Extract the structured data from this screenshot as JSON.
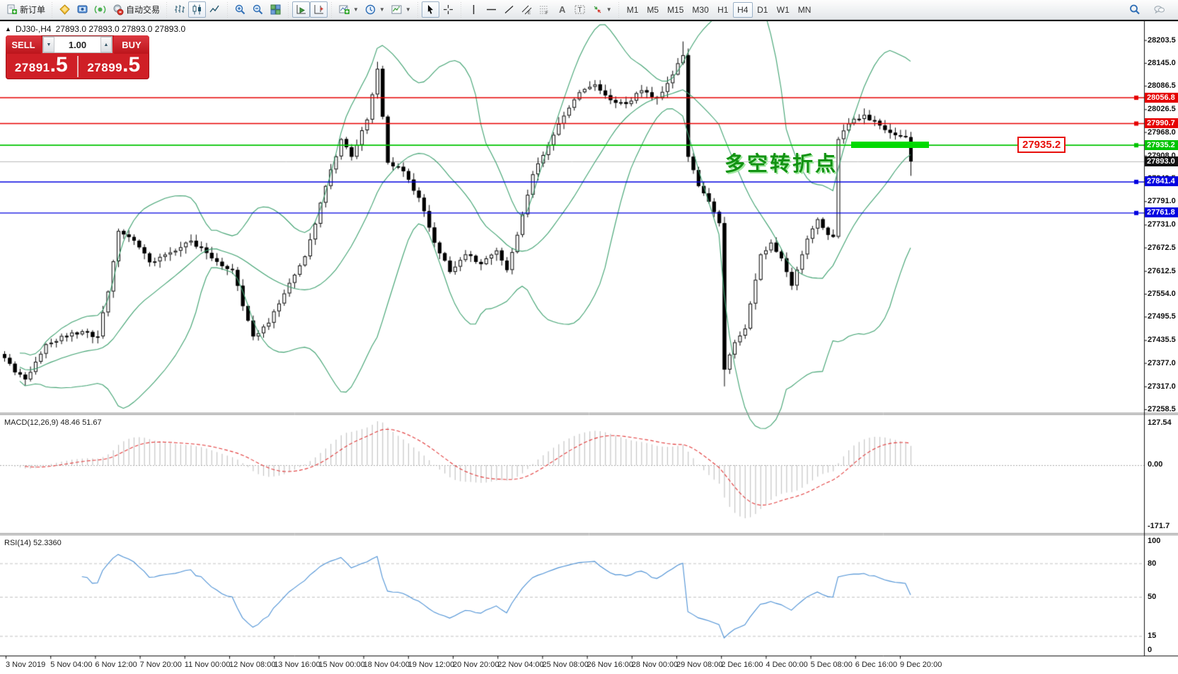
{
  "toolbar": {
    "buttons": [
      {
        "name": "new-order-button",
        "icon": "new-order-icon",
        "label": "新订单"
      },
      {
        "sep": true
      },
      {
        "name": "market-watch-button",
        "icon": "market-watch-icon"
      },
      {
        "name": "data-window-button",
        "icon": "data-window-icon"
      },
      {
        "name": "strategy-tester-button",
        "icon": "strategy-tester-icon"
      },
      {
        "name": "autotrading-button",
        "icon": "autotrading-icon",
        "label": "自动交易"
      },
      {
        "sep": true
      },
      {
        "name": "bar-chart-button",
        "icon": "bar-chart-icon"
      },
      {
        "name": "candlestick-button",
        "icon": "candlestick-icon",
        "active": true
      },
      {
        "name": "line-chart-button",
        "icon": "line-chart-icon"
      },
      {
        "sep": true
      },
      {
        "name": "zoom-in-button",
        "icon": "zoom-in-icon"
      },
      {
        "name": "zoom-out-button",
        "icon": "zoom-out-icon"
      },
      {
        "name": "tile-windows-button",
        "icon": "tile-windows-icon"
      },
      {
        "sep": true
      },
      {
        "name": "auto-scroll-button",
        "icon": "auto-scroll-icon",
        "active": true
      },
      {
        "name": "chart-shift-button",
        "icon": "chart-shift-icon",
        "active": true
      },
      {
        "sep": true
      },
      {
        "name": "indicators-button",
        "icon": "indicators-icon",
        "dropdown": true
      },
      {
        "name": "periods-button",
        "icon": "periods-icon",
        "dropdown": true
      },
      {
        "name": "templates-button",
        "icon": "templates-icon",
        "dropdown": true
      },
      {
        "sep": true
      },
      {
        "name": "cursor-button",
        "icon": "cursor-icon",
        "active": true
      },
      {
        "name": "crosshair-button",
        "icon": "crosshair-icon"
      },
      {
        "sep": true
      },
      {
        "name": "vline-button",
        "icon": "vline-icon"
      },
      {
        "name": "hline-button",
        "icon": "hline-icon"
      },
      {
        "name": "trendline-button",
        "icon": "trendline-icon"
      },
      {
        "name": "channel-button",
        "icon": "channel-icon"
      },
      {
        "name": "fibonacci-button",
        "icon": "fibonacci-icon"
      },
      {
        "name": "text-button",
        "icon": "text-icon"
      },
      {
        "name": "text-label-button",
        "icon": "text-label-icon"
      },
      {
        "name": "arrows-button",
        "icon": "arrows-icon",
        "dropdown": true
      },
      {
        "sep": true
      }
    ],
    "timeframes": [
      "M1",
      "M5",
      "M15",
      "M30",
      "H1",
      "H4",
      "D1",
      "W1",
      "MN"
    ],
    "active_timeframe": "H4",
    "right_buttons": [
      {
        "name": "search-button",
        "icon": "search-icon"
      },
      {
        "name": "community-button",
        "icon": "community-icon"
      }
    ]
  },
  "chart": {
    "title": {
      "marker": "▲",
      "symbol": "DJ30-,H4",
      "ohlc": "27893.0 27893.0 27893.0 27893.0"
    },
    "trade_panel": {
      "sell_label": "SELL",
      "buy_label": "BUY",
      "volume": "1.00",
      "sell_price_main": "27891",
      "sell_price_pip": ".5",
      "buy_price_main": "27899",
      "buy_price_pip": ".5"
    },
    "annotation": {
      "text": "多空转折点"
    },
    "price_label_box": {
      "text": "27935.2"
    }
  },
  "chart_data": {
    "type": "candlestick",
    "symbol": "DJ30-,H4",
    "price_axis": {
      "ticks": [
        28203.5,
        28145.0,
        28086.5,
        28026.5,
        27968.0,
        27908.0,
        27849.5,
        27791.0,
        27731.0,
        27672.5,
        27612.5,
        27554.0,
        27495.5,
        27435.5,
        27377.0,
        27317.0,
        27258.5
      ],
      "top_price": 28230,
      "bottom_price": 27255
    },
    "hlines": [
      {
        "price": 28056.8,
        "label": "28056.8",
        "color": "#e60000"
      },
      {
        "price": 27990.7,
        "label": "27990.7",
        "color": "#e60000"
      },
      {
        "price": 27935.2,
        "label": "27935.2",
        "color": "#00c400"
      },
      {
        "price": 27841.4,
        "label": "27841.4",
        "color": "#0000e0"
      },
      {
        "price": 27761.8,
        "label": "27761.8",
        "color": "#0000e0"
      }
    ],
    "current_price": {
      "value": 27893.0,
      "label": "27893.0",
      "tag_color": "#111111",
      "line_color": "#b8b8b8"
    },
    "candles": {
      "count": 176,
      "close_anchors": [
        [
          0,
          27390
        ],
        [
          4,
          27335
        ],
        [
          8,
          27425
        ],
        [
          13,
          27455
        ],
        [
          18,
          27445
        ],
        [
          20,
          27560
        ],
        [
          22,
          27715
        ],
        [
          25,
          27690
        ],
        [
          28,
          27635
        ],
        [
          32,
          27660
        ],
        [
          36,
          27690
        ],
        [
          40,
          27645
        ],
        [
          44,
          27615
        ],
        [
          48,
          27445
        ],
        [
          51,
          27480
        ],
        [
          54,
          27555
        ],
        [
          58,
          27650
        ],
        [
          62,
          27830
        ],
        [
          65,
          27950
        ],
        [
          67,
          27905
        ],
        [
          70,
          28000
        ],
        [
          72,
          28130
        ],
        [
          74,
          27890
        ],
        [
          77,
          27868
        ],
        [
          80,
          27800
        ],
        [
          83,
          27685
        ],
        [
          86,
          27610
        ],
        [
          89,
          27655
        ],
        [
          92,
          27630
        ],
        [
          95,
          27665
        ],
        [
          97,
          27615
        ],
        [
          99,
          27705
        ],
        [
          102,
          27860
        ],
        [
          105,
          27935
        ],
        [
          108,
          28010
        ],
        [
          111,
          28070
        ],
        [
          114,
          28090
        ],
        [
          117,
          28050
        ],
        [
          120,
          28040
        ],
        [
          123,
          28075
        ],
        [
          126,
          28055
        ],
        [
          129,
          28115
        ],
        [
          131,
          28165
        ],
        [
          132,
          27905
        ],
        [
          134,
          27830
        ],
        [
          136,
          27790
        ],
        [
          138,
          27735
        ],
        [
          139,
          27360
        ],
        [
          141,
          27430
        ],
        [
          143,
          27465
        ],
        [
          146,
          27655
        ],
        [
          148,
          27685
        ],
        [
          150,
          27645
        ],
        [
          152,
          27575
        ],
        [
          155,
          27695
        ],
        [
          157,
          27745
        ],
        [
          159,
          27705
        ],
        [
          160,
          27700
        ],
        [
          161,
          27950
        ],
        [
          163,
          27990
        ],
        [
          166,
          28012
        ],
        [
          169,
          27985
        ],
        [
          172,
          27960
        ],
        [
          174,
          27955
        ],
        [
          175,
          27893
        ]
      ],
      "wick_overrides": {
        "72": {
          "high": 28148
        },
        "131": {
          "high": 28200
        },
        "139": {
          "low": 27317
        },
        "175": {
          "low": 27856
        }
      },
      "bull_color": "#ffffff",
      "bear_color": "#000000",
      "outline_color": "#000000"
    },
    "bollinger": {
      "period": 20,
      "deviation": 2.1,
      "color": "#3ca06e"
    },
    "macd": {
      "label": "MACD(12,26,9)",
      "values": "48.46 51.67",
      "axis_labels": [
        "127.54",
        "0.00",
        "-171.7"
      ],
      "hist_color": "#c4c4c4",
      "signal_color": "#e03535"
    },
    "rsi": {
      "label": "RSI(14)",
      "value": "52.3360",
      "levels": [
        80,
        50,
        15
      ],
      "axis_labels": [
        "100",
        "80",
        "50",
        "15",
        "0"
      ],
      "line_color": "#4a8fd4"
    },
    "time_axis": {
      "labels": [
        "3 Nov 2019",
        "5 Nov 04:00",
        "6 Nov 12:00",
        "7 Nov 20:00",
        "11 Nov 00:00",
        "12 Nov 08:00",
        "13 Nov 16:00",
        "15 Nov 00:00",
        "18 Nov 04:00",
        "19 Nov 12:00",
        "20 Nov 20:00",
        "22 Nov 04:00",
        "25 Nov 08:00",
        "26 Nov 16:00",
        "28 Nov 00:00",
        "29 Nov 08:00",
        "2 Dec 16:00",
        "4 Dec 00:00",
        "5 Dec 08:00",
        "6 Dec 16:00",
        "9 Dec 20:00"
      ]
    },
    "annotation_text": "多空转折点",
    "highlight_price_label": "27935.2"
  }
}
